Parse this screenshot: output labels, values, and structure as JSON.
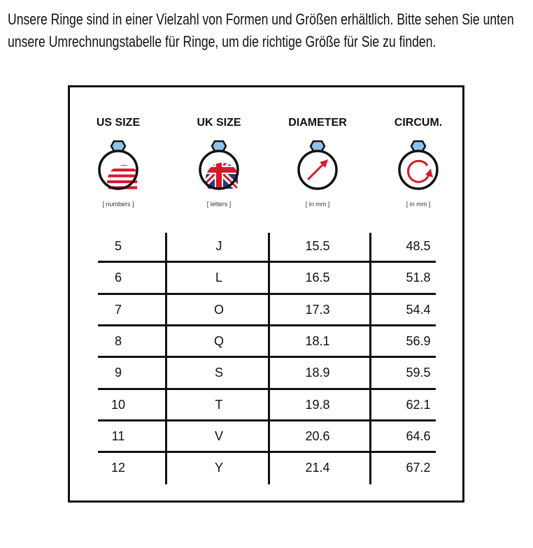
{
  "intro": "Unsere Ringe sind in einer Vielzahl von Formen und Größen erhältlich. Bitte sehen Sie unten unsere Umrechnungstabelle für Ringe, um die richtige Größe für Sie zu finden.",
  "columns": [
    {
      "title": "US SIZE",
      "unit": "[ numbers ]",
      "icon": "us-flag-icon"
    },
    {
      "title": "UK SIZE",
      "unit": "[ letters ]",
      "icon": "uk-flag-icon"
    },
    {
      "title": "DIAMETER",
      "unit": "[ in mm ]",
      "icon": "diameter-arrow-icon"
    },
    {
      "title": "CIRCUM.",
      "unit": "[ in mm ]",
      "icon": "circumference-arrow-icon"
    }
  ],
  "rows": [
    [
      "5",
      "J",
      "15.5",
      "48.5"
    ],
    [
      "6",
      "L",
      "16.5",
      "51.8"
    ],
    [
      "7",
      "O",
      "17.3",
      "54.4"
    ],
    [
      "8",
      "Q",
      "18.1",
      "56.9"
    ],
    [
      "9",
      "S",
      "18.9",
      "59.5"
    ],
    [
      "10",
      "T",
      "19.8",
      "62.1"
    ],
    [
      "11",
      "V",
      "20.6",
      "64.6"
    ],
    [
      "12",
      "Y",
      "21.4",
      "67.2"
    ]
  ],
  "colors": {
    "red": "#d7192a",
    "blue": "#2b3a78",
    "gem": "#8cc3ee",
    "line": "#111111"
  }
}
